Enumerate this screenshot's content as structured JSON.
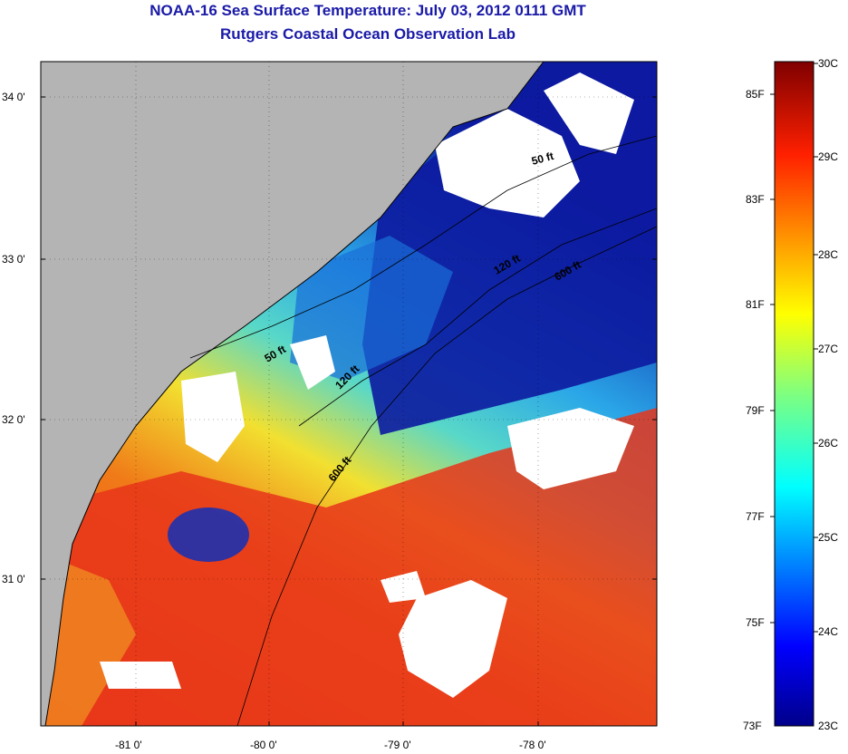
{
  "header": {
    "title": "NOAA-16 Sea Surface Temperature:  July 03, 2012 0111 GMT",
    "subtitle": "Rutgers Coastal Ocean Observation Lab"
  },
  "map": {
    "lat_ticks": [
      "34 0'",
      "33 0'",
      "32 0'",
      "31 0'"
    ],
    "lon_ticks": [
      "-81 0'",
      "-80 0'",
      "-79 0'",
      "-78 0'"
    ],
    "contour_labels": [
      "50 ft",
      "120 ft",
      "600 ft",
      "50 ft",
      "120 ft",
      "600 ft"
    ],
    "colors": {
      "land": "#b4b4b4",
      "cloud": "#ffffff",
      "warm": "#e8351a",
      "cool": "#0a1a96"
    }
  },
  "colorbar": {
    "celsius": [
      "30C",
      "29C",
      "28C",
      "27C",
      "26C",
      "25C",
      "24C",
      "23C"
    ],
    "fahrenheit": [
      "85F",
      "83F",
      "81F",
      "79F",
      "77F",
      "75F",
      "73F"
    ]
  }
}
